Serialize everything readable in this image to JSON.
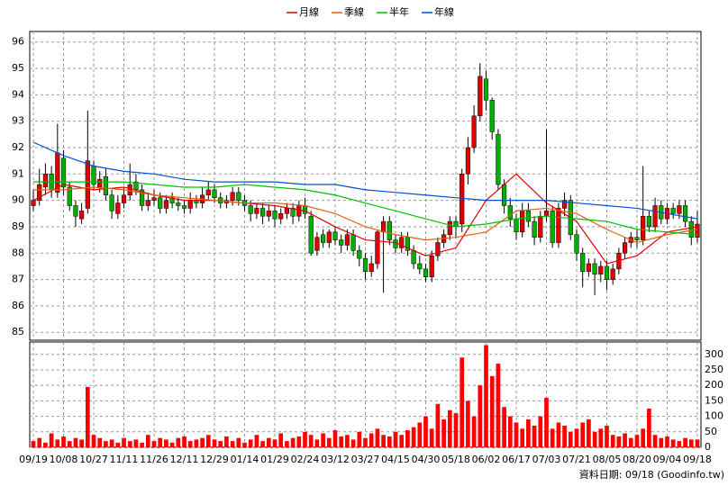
{
  "chart_data": {
    "type": "candlestick",
    "legend": "top",
    "grid": true,
    "up_color": "#e00000",
    "down_color": "#00b000",
    "footnote": "資料日期: 09/18 (Goodinfo.tw)",
    "xlim": [
      -0.6,
      110.6
    ],
    "xticks": [
      {
        "value": 0,
        "label": "09/19"
      },
      {
        "value": 5,
        "label": "10/08"
      },
      {
        "value": 10,
        "label": "10/27"
      },
      {
        "value": 15,
        "label": "11/11"
      },
      {
        "value": 20,
        "label": "11/26"
      },
      {
        "value": 25,
        "label": "12/11"
      },
      {
        "value": 30,
        "label": "12/29"
      },
      {
        "value": 35,
        "label": "01/14"
      },
      {
        "value": 40,
        "label": "01/29"
      },
      {
        "value": 45,
        "label": "02/24"
      },
      {
        "value": 50,
        "label": "03/12"
      },
      {
        "value": 55,
        "label": "03/27"
      },
      {
        "value": 60,
        "label": "04/15"
      },
      {
        "value": 65,
        "label": "04/30"
      },
      {
        "value": 70,
        "label": "05/18"
      },
      {
        "value": 75,
        "label": "06/02"
      },
      {
        "value": 80,
        "label": "06/17"
      },
      {
        "value": 85,
        "label": "07/03"
      },
      {
        "value": 90,
        "label": "07/21"
      },
      {
        "value": 95,
        "label": "08/05"
      },
      {
        "value": 100,
        "label": "08/20"
      },
      {
        "value": 105,
        "label": "09/04"
      },
      {
        "value": 110,
        "label": "09/18"
      }
    ],
    "ylim": [
      84.7,
      96.4
    ],
    "yticks": [
      85,
      86,
      87,
      88,
      89,
      90,
      91,
      92,
      93,
      94,
      95,
      96
    ],
    "y2lim": [
      0,
      340
    ],
    "y2ticks": [
      0,
      50,
      100,
      150,
      200,
      250,
      300
    ],
    "open": [
      89.8,
      90.0,
      90.5,
      91.0,
      90.3,
      91.6,
      90.5,
      89.8,
      89.3,
      89.7,
      91.3,
      90.5,
      90.9,
      90.2,
      89.5,
      89.9,
      90.2,
      90.7,
      90.4,
      89.8,
      90.0,
      90.1,
      89.7,
      90.1,
      89.9,
      89.8,
      89.7,
      90.0,
      89.9,
      90.2,
      90.4,
      90.1,
      89.9,
      90.0,
      90.3,
      90.0,
      89.8,
      89.5,
      89.7,
      89.4,
      89.6,
      89.3,
      89.5,
      89.7,
      89.4,
      89.8,
      89.4,
      88.1,
      88.7,
      88.4,
      88.8,
      88.5,
      88.3,
      88.7,
      88.1,
      87.8,
      87.3,
      87.6,
      88.8,
      89.2,
      88.5,
      88.2,
      88.6,
      88.1,
      87.6,
      87.4,
      87.1,
      87.9,
      88.4,
      88.7,
      89.2,
      89.1,
      91.0,
      92.0,
      93.2,
      94.6,
      93.8,
      92.5,
      90.6,
      89.8,
      89.3,
      88.8,
      89.6,
      89.2,
      88.6,
      89.4,
      89.6,
      88.4,
      89.7,
      90.0,
      88.7,
      88.0,
      87.3,
      87.6,
      87.2,
      87.5,
      87.0,
      87.4,
      88.0,
      88.4,
      88.6,
      88.5,
      89.4,
      89.0,
      89.8,
      89.3,
      89.7,
      89.5,
      89.8,
      89.2,
      88.6
    ],
    "high": [
      90.4,
      91.2,
      91.4,
      91.3,
      92.9,
      91.9,
      90.7,
      90.0,
      89.9,
      93.4,
      91.5,
      91.1,
      91.2,
      90.4,
      90.2,
      90.5,
      91.4,
      91.0,
      90.6,
      90.3,
      90.4,
      90.3,
      90.2,
      90.3,
      90.1,
      90.0,
      90.3,
      90.2,
      90.5,
      90.7,
      90.6,
      90.3,
      90.2,
      90.5,
      90.5,
      90.2,
      90.0,
      89.9,
      89.9,
      89.8,
      89.8,
      89.7,
      89.9,
      89.9,
      90.0,
      90.1,
      89.6,
      88.8,
      88.9,
      88.9,
      89.0,
      88.7,
      88.9,
      88.9,
      88.3,
      88.0,
      87.9,
      88.9,
      89.4,
      89.4,
      88.7,
      88.8,
      88.8,
      88.3,
      87.9,
      87.6,
      88.1,
      88.6,
      88.9,
      89.4,
      89.4,
      91.2,
      92.4,
      93.6,
      95.2,
      94.9,
      93.9,
      92.7,
      90.8,
      90.1,
      89.5,
      89.9,
      89.9,
      89.4,
      89.6,
      92.7,
      89.8,
      89.9,
      90.3,
      90.2,
      88.9,
      88.2,
      87.8,
      87.8,
      87.7,
      87.7,
      87.6,
      88.2,
      88.6,
      88.8,
      88.9,
      91.3,
      89.6,
      90.1,
      90.0,
      89.9,
      89.9,
      90.0,
      90.0,
      89.4,
      89.6
    ],
    "low": [
      89.6,
      89.8,
      90.2,
      90.1,
      90.1,
      90.2,
      89.6,
      89.0,
      89.1,
      89.5,
      90.4,
      90.3,
      90.0,
      89.3,
      89.3,
      89.7,
      90.0,
      90.2,
      89.6,
      89.6,
      89.8,
      89.5,
      89.5,
      89.7,
      89.6,
      89.5,
      89.5,
      89.7,
      89.7,
      90.0,
      89.9,
      89.7,
      89.7,
      89.8,
      89.8,
      89.6,
      89.2,
      89.3,
      89.1,
      89.2,
      89.0,
      89.1,
      89.3,
      89.1,
      89.2,
      89.3,
      87.9,
      87.9,
      88.2,
      88.2,
      88.3,
      88.0,
      88.1,
      87.9,
      87.5,
      87.0,
      87.1,
      87.4,
      86.5,
      88.3,
      88.0,
      88.0,
      87.9,
      87.4,
      87.2,
      86.9,
      86.9,
      87.7,
      88.2,
      88.5,
      88.6,
      88.8,
      90.6,
      91.8,
      93.0,
      93.4,
      92.3,
      90.4,
      89.5,
      89.0,
      88.5,
      88.6,
      89.0,
      88.3,
      88.4,
      89.2,
      88.2,
      88.2,
      89.4,
      88.5,
      87.7,
      86.7,
      87.1,
      86.4,
      86.9,
      86.6,
      86.8,
      87.2,
      87.8,
      88.2,
      88.2,
      88.3,
      88.8,
      88.8,
      89.1,
      89.1,
      89.3,
      89.3,
      89.0,
      88.3,
      88.4
    ],
    "close": [
      90.0,
      90.6,
      91.0,
      90.4,
      91.8,
      90.5,
      89.8,
      89.4,
      89.6,
      91.5,
      90.6,
      90.8,
      90.2,
      89.6,
      89.9,
      90.2,
      90.6,
      90.4,
      89.8,
      90.0,
      90.1,
      89.7,
      90.0,
      89.9,
      89.8,
      89.7,
      90.0,
      89.9,
      90.2,
      90.4,
      90.1,
      89.9,
      90.0,
      90.3,
      90.0,
      89.8,
      89.5,
      89.7,
      89.4,
      89.6,
      89.3,
      89.5,
      89.7,
      89.4,
      89.8,
      89.5,
      88.0,
      88.6,
      88.4,
      88.8,
      88.5,
      88.3,
      88.7,
      88.1,
      87.8,
      87.3,
      87.6,
      88.8,
      89.2,
      88.5,
      88.2,
      88.6,
      88.1,
      87.6,
      87.4,
      87.1,
      87.9,
      88.4,
      88.7,
      89.2,
      89.0,
      91.0,
      92.0,
      93.2,
      94.7,
      93.8,
      92.6,
      90.6,
      89.8,
      89.3,
      88.8,
      89.6,
      89.2,
      88.6,
      89.4,
      89.6,
      88.4,
      89.7,
      90.0,
      88.7,
      88.0,
      87.3,
      87.6,
      87.2,
      87.5,
      87.0,
      87.4,
      88.0,
      88.4,
      88.6,
      88.5,
      89.4,
      89.0,
      89.8,
      89.3,
      89.7,
      89.5,
      89.8,
      89.2,
      88.6,
      89.1
    ],
    "volume": {
      "color": "#ff0000",
      "axis": "y2",
      "values": [
        20,
        30,
        15,
        45,
        25,
        35,
        20,
        30,
        25,
        195,
        40,
        30,
        20,
        25,
        15,
        30,
        20,
        25,
        15,
        40,
        20,
        30,
        25,
        15,
        30,
        35,
        20,
        25,
        30,
        40,
        25,
        20,
        35,
        20,
        30,
        15,
        25,
        40,
        20,
        30,
        25,
        45,
        20,
        30,
        35,
        50,
        40,
        25,
        45,
        30,
        55,
        35,
        40,
        25,
        50,
        30,
        45,
        60,
        40,
        35,
        50,
        40,
        55,
        65,
        80,
        100,
        60,
        140,
        90,
        120,
        110,
        290,
        150,
        100,
        200,
        330,
        230,
        270,
        130,
        100,
        80,
        60,
        90,
        70,
        100,
        160,
        60,
        80,
        70,
        50,
        60,
        80,
        90,
        50,
        60,
        70,
        40,
        35,
        45,
        30,
        40,
        60,
        125,
        40,
        30,
        35,
        25,
        20,
        30,
        25,
        25
      ]
    },
    "series": [
      {
        "name": "月線",
        "color": "#e00000",
        "x": [
          0,
          5,
          10,
          15,
          20,
          25,
          30,
          35,
          40,
          45,
          50,
          55,
          60,
          65,
          70,
          75,
          80,
          85,
          90,
          95,
          100,
          105,
          110
        ],
        "values": [
          90.0,
          90.6,
          90.4,
          90.5,
          90.2,
          90.0,
          90.0,
          89.9,
          89.8,
          89.6,
          89.0,
          88.5,
          88.4,
          87.9,
          88.2,
          90.0,
          91.0,
          89.9,
          89.2,
          87.6,
          87.9,
          88.8,
          89.0
        ]
      },
      {
        "name": "季線",
        "color": "#e06010",
        "x": [
          0,
          5,
          10,
          15,
          20,
          25,
          30,
          35,
          40,
          45,
          50,
          55,
          60,
          65,
          70,
          75,
          80,
          85,
          90,
          95,
          100,
          105,
          110
        ],
        "values": [
          90.4,
          90.4,
          90.5,
          90.4,
          90.2,
          90.1,
          90.0,
          89.9,
          89.9,
          89.8,
          89.5,
          89.0,
          88.7,
          88.5,
          88.6,
          88.8,
          89.6,
          89.7,
          89.5,
          88.9,
          88.4,
          88.7,
          88.9
        ]
      },
      {
        "name": "半年",
        "color": "#00c000",
        "x": [
          0,
          5,
          10,
          15,
          20,
          25,
          30,
          35,
          40,
          45,
          50,
          55,
          60,
          65,
          70,
          75,
          80,
          85,
          90,
          95,
          100,
          105,
          110
        ],
        "values": [
          90.7,
          90.7,
          90.7,
          90.7,
          90.6,
          90.5,
          90.5,
          90.6,
          90.5,
          90.4,
          90.2,
          89.9,
          89.6,
          89.3,
          89.0,
          89.1,
          89.3,
          89.4,
          89.3,
          89.2,
          88.9,
          88.8,
          88.7
        ]
      },
      {
        "name": "年線",
        "color": "#0050d0",
        "x": [
          0,
          5,
          10,
          15,
          20,
          25,
          30,
          35,
          40,
          45,
          50,
          55,
          60,
          65,
          70,
          75,
          80,
          85,
          90,
          95,
          100,
          105,
          110
        ],
        "values": [
          92.2,
          91.7,
          91.3,
          91.1,
          91.0,
          90.8,
          90.7,
          90.7,
          90.7,
          90.6,
          90.6,
          90.4,
          90.3,
          90.2,
          90.1,
          90.0,
          90.0,
          90.0,
          89.9,
          89.8,
          89.7,
          89.5,
          89.3
        ]
      }
    ]
  }
}
